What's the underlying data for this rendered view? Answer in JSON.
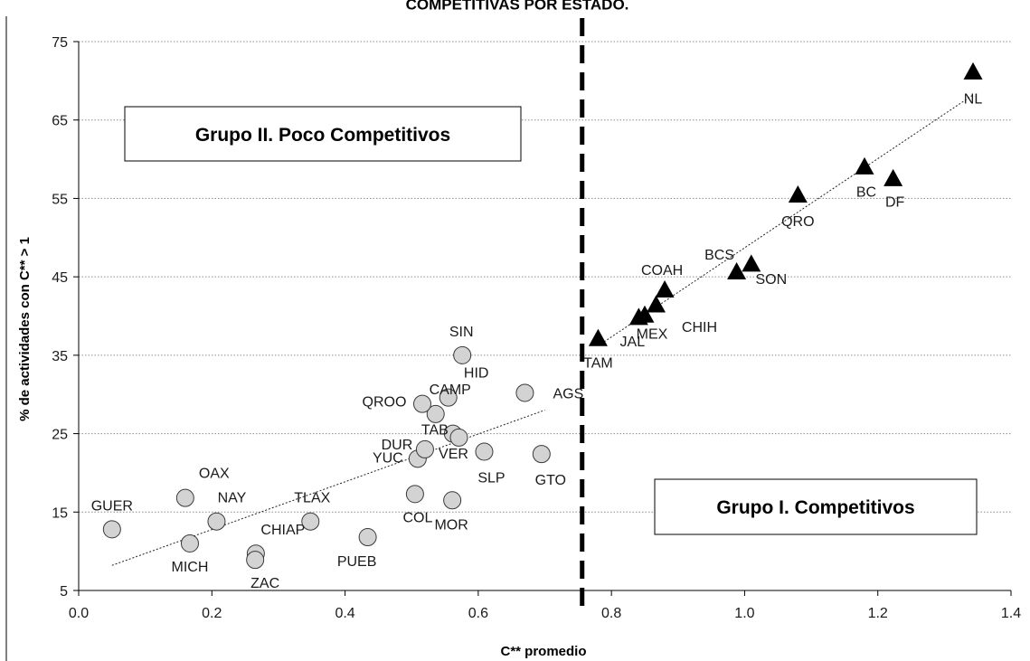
{
  "chart_data": {
    "type": "scatter",
    "title": "COMPETITIVAS POR ESTADO.",
    "xlabel": "C** promedio",
    "ylabel": "% de actividades con C** > 1",
    "xlim": [
      0.0,
      1.4
    ],
    "ylim": [
      5,
      75
    ],
    "x_ticks": [
      "0.0",
      "0.2",
      "0.4",
      "0.6",
      "0.8",
      "1.0",
      "1.2",
      "1.4"
    ],
    "y_ticks": [
      "5",
      "15",
      "25",
      "35",
      "45",
      "55",
      "65",
      "75"
    ],
    "grid": "horizontal dotted",
    "divider_x": 0.756,
    "group_labels": {
      "group2": "Grupo II. Poco Competitivos",
      "group1": "Grupo I. Competitivos"
    },
    "series": [
      {
        "marker": "circle",
        "points": [
          {
            "label": "GUER",
            "x": 0.05,
            "y": 12.8
          },
          {
            "label": "OAX",
            "x": 0.16,
            "y": 16.8
          },
          {
            "label": "MICH",
            "x": 0.167,
            "y": 11.0
          },
          {
            "label": "NAY",
            "x": 0.207,
            "y": 13.8
          },
          {
            "label": "CHIAP",
            "x": 0.266,
            "y": 9.7
          },
          {
            "label": "ZAC",
            "x": 0.265,
            "y": 8.9
          },
          {
            "label": "TLAX",
            "x": 0.348,
            "y": 13.8
          },
          {
            "label": "PUEB",
            "x": 0.434,
            "y": 11.8
          },
          {
            "label": "COL",
            "x": 0.505,
            "y": 17.3
          },
          {
            "label": "MOR",
            "x": 0.561,
            "y": 16.5
          },
          {
            "label": "YUC",
            "x": 0.509,
            "y": 21.8
          },
          {
            "label": "DUR",
            "x": 0.52,
            "y": 23.0
          },
          {
            "label": "TAB",
            "x": 0.562,
            "y": 25.0
          },
          {
            "label": "VER",
            "x": 0.571,
            "y": 24.5
          },
          {
            "label": "CAMP",
            "x": 0.536,
            "y": 27.5
          },
          {
            "label": "QROO",
            "x": 0.516,
            "y": 28.8
          },
          {
            "label": "HID",
            "x": 0.555,
            "y": 29.6
          },
          {
            "label": "SIN",
            "x": 0.576,
            "y": 35.0
          },
          {
            "label": "AGS",
            "x": 0.67,
            "y": 30.2
          },
          {
            "label": "SLP",
            "x": 0.609,
            "y": 22.7
          },
          {
            "label": "GTO",
            "x": 0.695,
            "y": 22.4
          }
        ]
      },
      {
        "marker": "triangle",
        "points": [
          {
            "label": "TAM",
            "x": 0.78,
            "y": 37.0
          },
          {
            "label": "JAL",
            "x": 0.841,
            "y": 39.7
          },
          {
            "label": "MEX",
            "x": 0.85,
            "y": 40.0
          },
          {
            "label": "CHIH",
            "x": 0.867,
            "y": 41.3
          },
          {
            "label": "COAH",
            "x": 0.88,
            "y": 43.2
          },
          {
            "label": "BCS",
            "x": 0.988,
            "y": 45.5
          },
          {
            "label": "SON",
            "x": 1.01,
            "y": 46.5
          },
          {
            "label": "QRO",
            "x": 1.08,
            "y": 55.3
          },
          {
            "label": "BC",
            "x": 1.18,
            "y": 58.9
          },
          {
            "label": "DF",
            "x": 1.223,
            "y": 57.4
          },
          {
            "label": "NL",
            "x": 1.343,
            "y": 71.0
          }
        ]
      }
    ],
    "trendlines": [
      {
        "from": [
          0.05,
          8.2
        ],
        "to": [
          0.7,
          28.0
        ]
      },
      {
        "from": [
          0.78,
          36.2
        ],
        "to": [
          1.343,
          68.2
        ]
      }
    ]
  }
}
